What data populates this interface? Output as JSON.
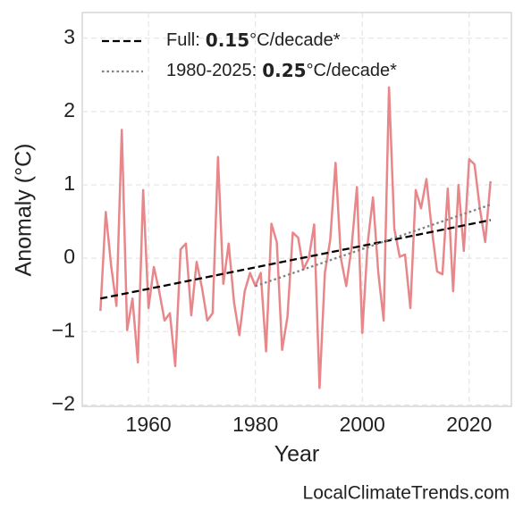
{
  "chart_data": {
    "type": "line",
    "xlabel": "Year",
    "ylabel": "Anomaly (°C)",
    "watermark": "LocalClimateTrends.com",
    "xlim": [
      1947.6,
      2027.9
    ],
    "ylim": [
      -2.02,
      3.35
    ],
    "xticks": [
      1960,
      1980,
      2000,
      2020
    ],
    "yticks": [
      {
        "value": -2,
        "label": "−2"
      },
      {
        "value": -1,
        "label": "−1"
      },
      0,
      1,
      2,
      3
    ],
    "grid": true,
    "legend": "upper left",
    "series": [
      {
        "name": "Anomaly",
        "color": "#e8878a",
        "style": "solid",
        "legend": false,
        "x": [
          1951,
          1952,
          1953,
          1954,
          1955,
          1956,
          1957,
          1958,
          1959,
          1960,
          1961,
          1962,
          1963,
          1964,
          1965,
          1966,
          1967,
          1968,
          1969,
          1970,
          1971,
          1972,
          1973,
          1974,
          1975,
          1976,
          1977,
          1978,
          1979,
          1980,
          1981,
          1982,
          1983,
          1984,
          1985,
          1986,
          1987,
          1988,
          1989,
          1990,
          1991,
          1992,
          1993,
          1994,
          1995,
          1996,
          1997,
          1998,
          1999,
          2000,
          2001,
          2002,
          2003,
          2004,
          2005,
          2006,
          2007,
          2008,
          2009,
          2010,
          2011,
          2012,
          2013,
          2014,
          2015,
          2016,
          2017,
          2018,
          2019,
          2020,
          2021,
          2022,
          2023,
          2024
        ],
        "values": [
          -0.72,
          0.63,
          -0.1,
          -0.65,
          1.75,
          -0.98,
          -0.55,
          -1.42,
          0.93,
          -0.68,
          -0.12,
          -0.45,
          -0.85,
          -0.75,
          -1.47,
          0.12,
          0.2,
          -0.78,
          -0.05,
          -0.4,
          -0.85,
          -0.75,
          1.38,
          -0.35,
          0.2,
          -0.6,
          -1.05,
          -0.45,
          -0.2,
          -0.38,
          -0.2,
          -1.27,
          0.47,
          0.22,
          -1.25,
          -0.8,
          0.35,
          0.28,
          -0.15,
          0.0,
          0.46,
          -1.77,
          -0.2,
          0.25,
          1.3,
          0.0,
          -0.38,
          0.15,
          0.97,
          -1.02,
          0.2,
          0.83,
          -0.2,
          -0.85,
          2.33,
          0.4,
          0.02,
          0.05,
          -0.68,
          0.93,
          0.68,
          1.08,
          0.4,
          -0.18,
          -0.22,
          0.95,
          -0.45,
          1.0,
          0.1,
          1.35,
          1.28,
          0.68,
          0.22,
          1.05
        ]
      },
      {
        "name": "Full:",
        "rate": 0.15,
        "unit": "°C/decade*",
        "color": "#000000",
        "style": "dashed",
        "x": [
          1951,
          2024
        ],
        "values": [
          -0.55,
          0.52
        ]
      },
      {
        "name": "1980-2025:",
        "rate": 0.25,
        "unit": "°C/decade*",
        "color": "#808080",
        "style": "dotted",
        "x": [
          1980,
          2024
        ],
        "values": [
          -0.38,
          0.73
        ]
      }
    ]
  }
}
